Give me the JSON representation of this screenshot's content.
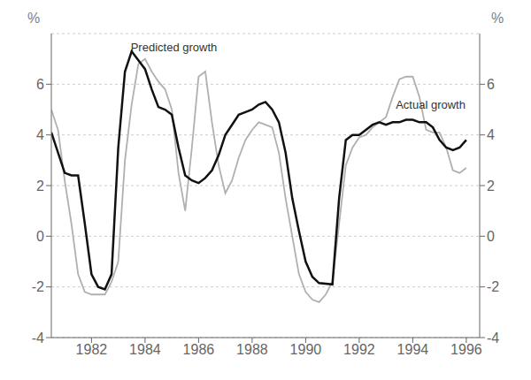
{
  "chart_data": {
    "type": "line",
    "ylabel": "%",
    "y2label": "%",
    "xlim": [
      1980.5,
      1996.5
    ],
    "xticks": [
      1982,
      1984,
      1986,
      1988,
      1990,
      1992,
      1994,
      1996
    ],
    "ylim": [
      -4,
      8
    ],
    "yticks": [
      -4,
      -2,
      0,
      2,
      4,
      6
    ],
    "y2lim": [
      -4,
      8
    ],
    "y2ticks": [
      -4,
      -2,
      0,
      2,
      4,
      6
    ],
    "grid": true,
    "annotations": [
      {
        "text": "Predicted growth",
        "x": 1983.3,
        "y": 7.45
      },
      {
        "text": "Actual growth",
        "x": 1993.2,
        "y": 5.2
      }
    ],
    "series": [
      {
        "color": "#b0b0b0",
        "x": [
          1980.5,
          1980.75,
          1981.0,
          1981.25,
          1981.5,
          1981.75,
          1982.0,
          1982.25,
          1982.5,
          1982.75,
          1983.0,
          1983.25,
          1983.5,
          1983.75,
          1984.0,
          1984.25,
          1984.5,
          1984.75,
          1985.0,
          1985.25,
          1985.5,
          1985.75,
          1986.0,
          1986.25,
          1986.5,
          1986.75,
          1987.0,
          1987.25,
          1987.5,
          1987.75,
          1988.0,
          1988.25,
          1988.5,
          1988.75,
          1989.0,
          1989.25,
          1989.5,
          1989.75,
          1990.0,
          1990.25,
          1990.5,
          1990.75,
          1991.0,
          1991.25,
          1991.5,
          1991.75,
          1992.0,
          1992.25,
          1992.5,
          1992.75,
          1993.0,
          1993.25,
          1993.5,
          1993.75,
          1994.0,
          1994.25,
          1994.5,
          1994.75,
          1995.0,
          1995.25,
          1995.5,
          1995.75,
          1996.0
        ],
        "values": [
          5.0,
          4.2,
          2.2,
          0.5,
          -1.5,
          -2.2,
          -2.3,
          -2.3,
          -2.3,
          -1.8,
          -1.0,
          3.0,
          5.2,
          6.8,
          7.0,
          6.5,
          6.1,
          5.8,
          5.0,
          2.5,
          1.0,
          3.5,
          6.3,
          6.5,
          4.5,
          2.8,
          1.7,
          2.2,
          3.1,
          3.8,
          4.2,
          4.5,
          4.4,
          4.3,
          3.3,
          1.5,
          0.0,
          -1.5,
          -2.2,
          -2.5,
          -2.6,
          -2.3,
          -1.8,
          0.5,
          2.8,
          3.5,
          3.9,
          4.0,
          4.3,
          4.5,
          4.7,
          5.5,
          6.2,
          6.3,
          6.3,
          5.5,
          4.2,
          4.1,
          4.1,
          3.5,
          2.6,
          2.5,
          2.7
        ]
      },
      {
        "color": "#111111",
        "x": [
          1980.5,
          1981.0,
          1981.25,
          1981.5,
          1981.75,
          1982.0,
          1982.25,
          1982.5,
          1982.75,
          1983.0,
          1983.25,
          1983.5,
          1984.0,
          1984.25,
          1984.5,
          1984.75,
          1985.0,
          1985.25,
          1985.5,
          1985.75,
          1986.0,
          1986.25,
          1986.5,
          1986.75,
          1987.0,
          1987.25,
          1987.5,
          1987.75,
          1988.0,
          1988.25,
          1988.5,
          1988.75,
          1989.0,
          1989.25,
          1989.5,
          1989.75,
          1990.0,
          1990.25,
          1990.5,
          1991.0,
          1991.25,
          1991.5,
          1991.75,
          1992.0,
          1992.25,
          1992.5,
          1992.75,
          1993.0,
          1993.25,
          1993.5,
          1993.75,
          1994.0,
          1994.25,
          1994.5,
          1994.75,
          1995.0,
          1995.25,
          1995.5,
          1995.75,
          1996.0
        ],
        "values": [
          4.1,
          2.5,
          2.4,
          2.4,
          0.5,
          -1.5,
          -2.0,
          -2.1,
          -1.5,
          3.5,
          6.5,
          7.3,
          6.6,
          5.8,
          5.1,
          5.0,
          4.8,
          3.5,
          2.4,
          2.2,
          2.1,
          2.3,
          2.6,
          3.2,
          4.0,
          4.4,
          4.8,
          4.9,
          5.0,
          5.2,
          5.3,
          5.0,
          4.5,
          3.3,
          1.5,
          0.2,
          -1.0,
          -1.6,
          -1.85,
          -1.9,
          1.5,
          3.8,
          4.0,
          4.0,
          4.2,
          4.4,
          4.5,
          4.4,
          4.5,
          4.5,
          4.6,
          4.6,
          4.5,
          4.5,
          4.3,
          3.8,
          3.5,
          3.4,
          3.5,
          3.8
        ]
      }
    ]
  }
}
